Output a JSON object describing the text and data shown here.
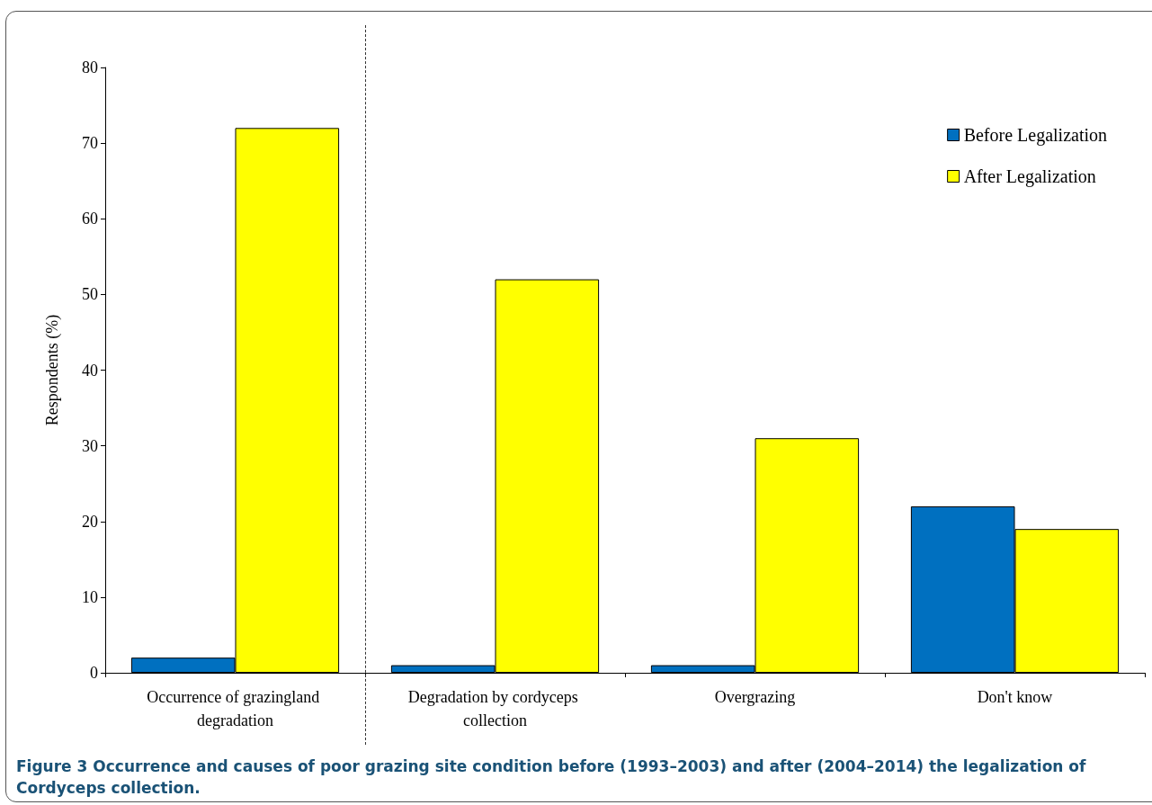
{
  "chart_data": {
    "type": "bar",
    "ylabel": "Respondents (%)",
    "categories": [
      "Occurrence of grazingland degradation",
      "Degradation by cordyceps collection",
      "Overgrazing",
      "Don't know"
    ],
    "series": [
      {
        "name": "Before Legalization",
        "color": "#0070c0",
        "values": [
          2,
          1,
          1,
          22
        ]
      },
      {
        "name": "After Legalization",
        "color": "#ffff00",
        "values": [
          72,
          52,
          31,
          19
        ]
      }
    ],
    "ylim": [
      0,
      80
    ],
    "yticks": [
      0,
      10,
      20,
      30,
      40,
      50,
      60,
      70,
      80
    ],
    "grid": false,
    "legend": "top right",
    "annotations": [
      "Figure 3 Occurrence and causes of poor grazing site condition before (1993–2003) and after (2004–2014) the legalization of Cordyceps collection."
    ]
  }
}
